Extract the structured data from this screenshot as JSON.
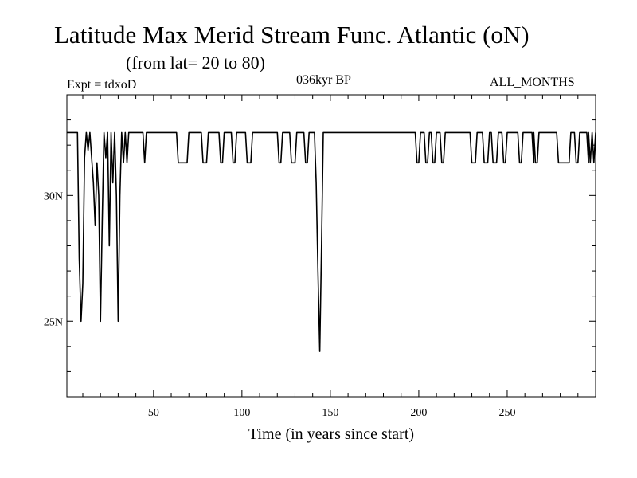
{
  "header": {
    "title": "Latitude Max Merid Stream Func. Atlantic (oN)",
    "subtitle": "(from lat= 20 to 80)",
    "experiment": "Expt = tdxoD",
    "period": "036kyr BP",
    "season": "ALL_MONTHS"
  },
  "chart_data": {
    "type": "line",
    "title": "Latitude Max Merid Stream Func. Atlantic (oN)",
    "subtitle": "(from lat= 20 to 80)",
    "xlabel": "Time (in years since start)",
    "ylabel": "",
    "xlim": [
      1,
      300
    ],
    "ylim": [
      22,
      34
    ],
    "x_ticks": [
      50,
      100,
      150,
      200,
      250
    ],
    "x_tick_labels": [
      "50",
      "100",
      "150",
      "200",
      "250"
    ],
    "y_ticks": [
      25,
      30
    ],
    "y_tick_labels": [
      "25N",
      "30N"
    ],
    "grid": false,
    "series": [
      {
        "x": [
          1,
          7,
          8,
          9,
          10,
          11,
          12,
          13,
          14,
          15,
          16,
          17,
          18,
          19,
          20,
          21,
          22,
          23,
          24,
          25,
          26,
          27,
          28,
          29,
          30,
          31,
          32,
          33,
          34,
          35,
          36,
          37,
          44,
          45,
          46,
          47,
          63,
          64,
          69,
          70,
          71,
          72,
          77,
          78,
          80,
          81,
          87,
          88,
          89,
          90,
          94,
          95,
          96,
          97,
          102,
          103,
          105,
          106,
          120,
          121,
          122,
          123,
          127,
          128,
          130,
          131,
          135,
          136,
          137,
          138,
          141,
          142,
          143,
          144,
          145,
          146,
          198,
          199,
          200,
          201,
          203,
          204,
          205,
          206,
          207,
          208,
          209,
          210,
          212,
          213,
          214,
          215,
          229,
          230,
          232,
          233,
          236,
          237,
          239,
          240,
          241,
          242,
          244,
          245,
          247,
          248,
          249,
          250,
          256,
          257,
          258,
          259,
          264,
          265,
          265,
          266,
          267,
          268,
          278,
          279,
          285,
          286,
          288,
          289,
          290,
          291,
          295,
          296,
          296,
          297,
          297,
          298,
          299,
          300
        ],
        "y": [
          32.5,
          32.5,
          27.5,
          25,
          26.5,
          31.5,
          32.5,
          31.8,
          32.5,
          31.5,
          30.5,
          28.8,
          31.3,
          30,
          25,
          29,
          32.5,
          31.5,
          32.5,
          28,
          32.5,
          30.5,
          32.5,
          30,
          25,
          30,
          32.5,
          31.3,
          32.5,
          31.3,
          32.5,
          32.5,
          32.5,
          31.3,
          32.5,
          32.5,
          32.5,
          31.3,
          31.3,
          32.5,
          32.5,
          32.5,
          32.5,
          31.3,
          31.3,
          32.5,
          32.5,
          31.3,
          31.3,
          32.5,
          32.5,
          31.3,
          31.3,
          32.5,
          32.5,
          31.3,
          31.3,
          32.5,
          32.5,
          31.3,
          31.3,
          32.5,
          32.5,
          31.3,
          31.3,
          32.5,
          32.5,
          31.3,
          31.3,
          32.5,
          32.5,
          30.5,
          27,
          23.8,
          28,
          32.5,
          32.5,
          31.3,
          31.3,
          32.5,
          32.5,
          31.3,
          31.3,
          32.5,
          32.5,
          31.3,
          31.3,
          32.5,
          32.5,
          31.3,
          31.3,
          32.5,
          32.5,
          31.3,
          31.3,
          32.5,
          32.5,
          31.3,
          31.3,
          32.5,
          32.5,
          31.3,
          31.3,
          32.5,
          32.5,
          31.3,
          31.3,
          32.5,
          32.5,
          31.3,
          31.3,
          32.5,
          32.5,
          31.3,
          32.5,
          31.3,
          31.3,
          32.5,
          32.5,
          31.3,
          31.3,
          32.5,
          32.5,
          31.3,
          31.3,
          32.5,
          32.5,
          31.3,
          32.5,
          31.3,
          31.3,
          32.5,
          31.3,
          32.5
        ]
      }
    ]
  }
}
